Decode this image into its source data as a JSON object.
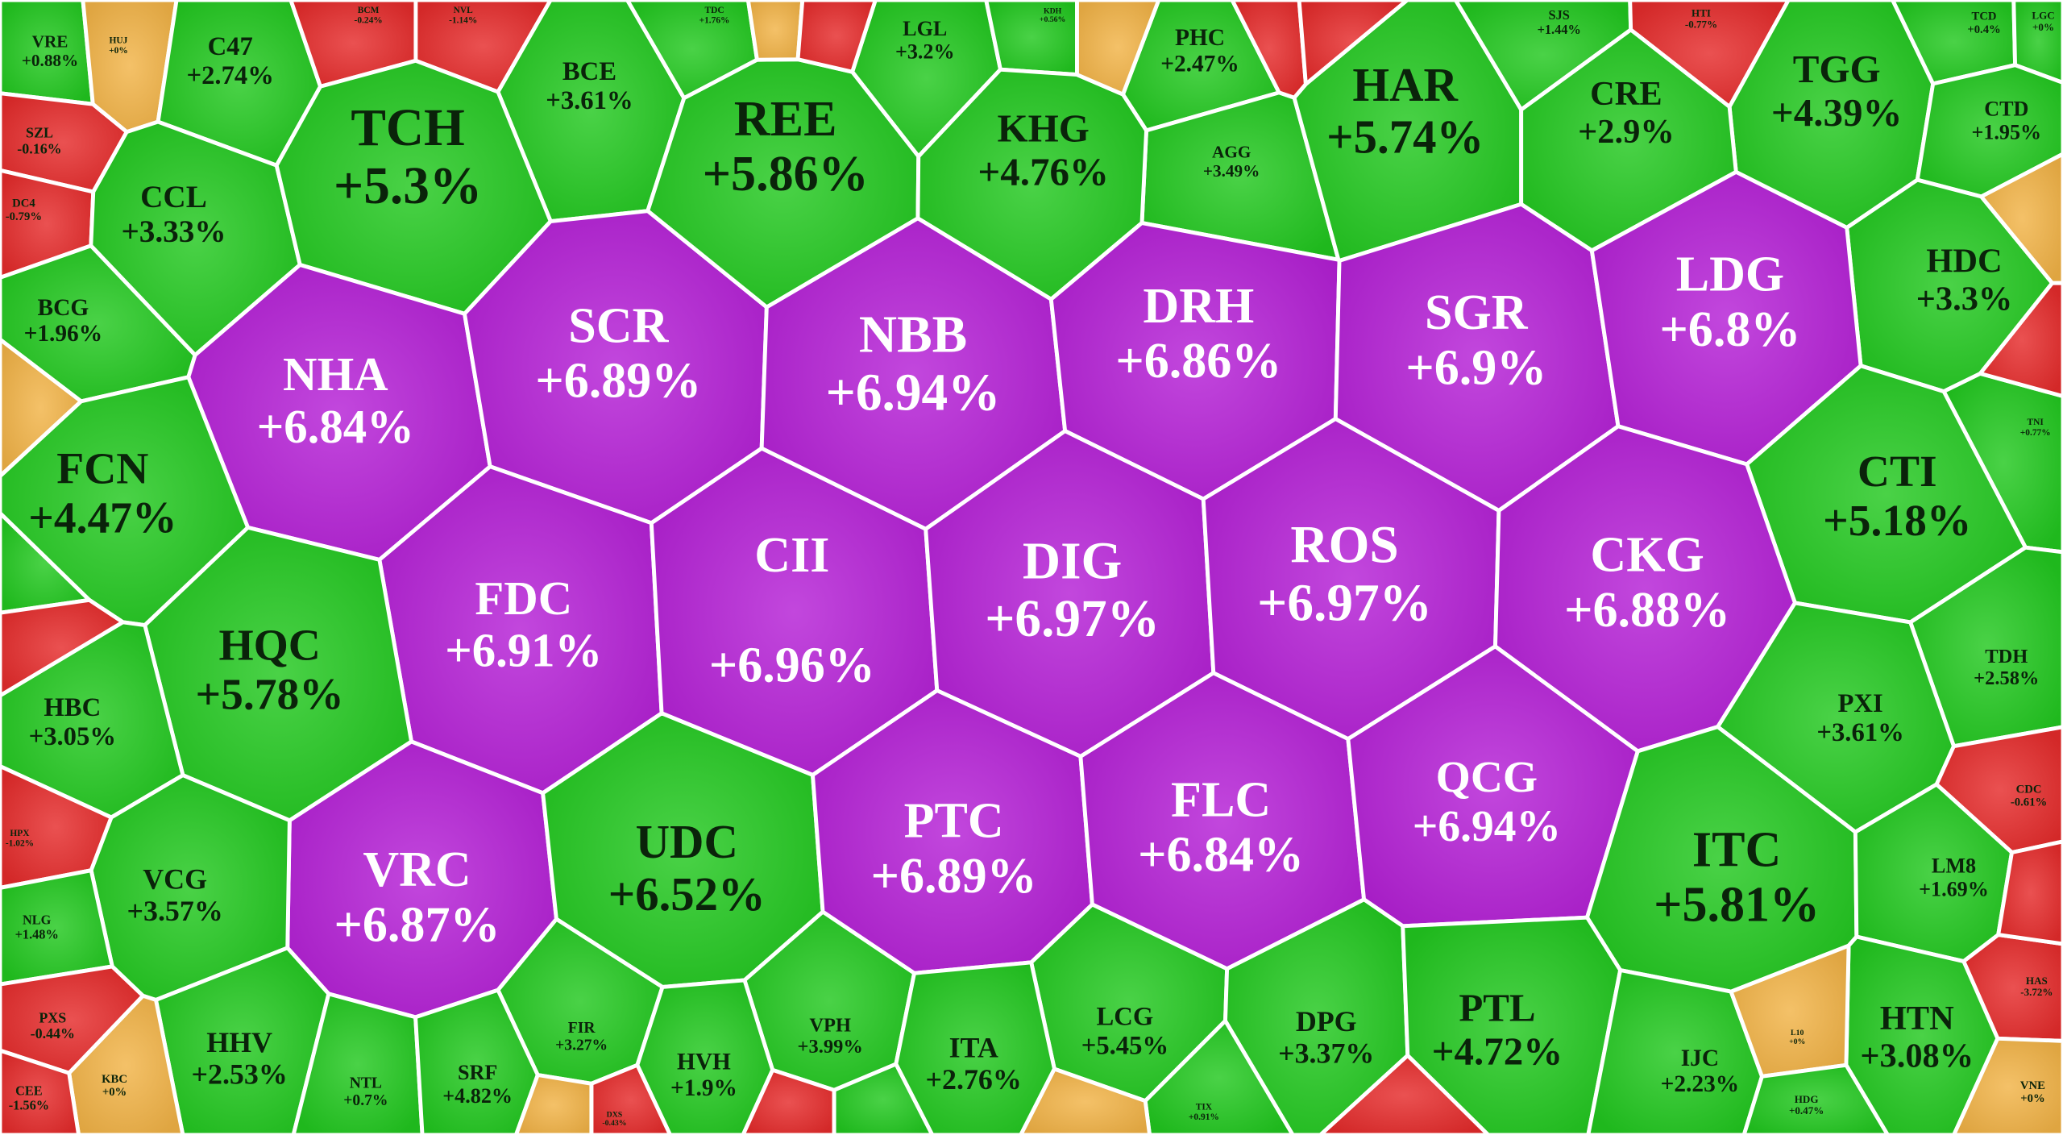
{
  "cells": [
    {
      "ticker": "VRE",
      "change": "+0.88%",
      "color": "#22c81f"
    },
    {
      "ticker": "HUJ",
      "change": "+0%",
      "color": "#f2b347"
    },
    {
      "ticker": "C47",
      "change": "+2.74%",
      "color": "#22c81f"
    },
    {
      "ticker": "BCM",
      "change": "-0.24%",
      "color": "#e52b2b"
    },
    {
      "ticker": "NVL",
      "change": "-1.14%",
      "color": "#e52b2b"
    },
    {
      "ticker": "BCE",
      "change": "+3.61%",
      "color": "#22c81f"
    },
    {
      "ticker": "TDC",
      "change": "+1.76%",
      "color": "#22c81f"
    },
    {
      "ticker": "LGL",
      "change": "+3.2%",
      "color": "#22c81f"
    },
    {
      "ticker": "KDH",
      "change": "+0.56%",
      "color": "#22c81f"
    },
    {
      "ticker": "PHC",
      "change": "+2.47%",
      "color": "#22c81f"
    },
    {
      "ticker": "AGG",
      "change": "+3.49%",
      "color": "#22c81f"
    },
    {
      "ticker": "HAR",
      "change": "+5.74%",
      "color": "#22c81f"
    },
    {
      "ticker": "SJS",
      "change": "+1.44%",
      "color": "#22c81f"
    },
    {
      "ticker": "HTI",
      "change": "-0.77%",
      "color": "#e52b2b"
    },
    {
      "ticker": "TGG",
      "change": "+4.39%",
      "color": "#22c81f"
    },
    {
      "ticker": "TCD",
      "change": "+0.4%",
      "color": "#22c81f"
    },
    {
      "ticker": "LGC",
      "change": "+0%",
      "color": "#22c81f"
    },
    {
      "ticker": "CTD",
      "change": "+1.95%",
      "color": "#22c81f"
    },
    {
      "ticker": "SZL",
      "change": "-0.16%",
      "color": "#e52b2b"
    },
    {
      "ticker": "DC4",
      "change": "-0.79%",
      "color": "#e52b2b"
    },
    {
      "ticker": "CCL",
      "change": "+3.33%",
      "color": "#22c81f"
    },
    {
      "ticker": "TCH",
      "change": "+5.3%",
      "color": "#22c81f"
    },
    {
      "ticker": "REE",
      "change": "+5.86%",
      "color": "#22c81f"
    },
    {
      "ticker": "KHG",
      "change": "+4.76%",
      "color": "#22c81f"
    },
    {
      "ticker": "CRE",
      "change": "+2.9%",
      "color": "#22c81f"
    },
    {
      "ticker": "BCG",
      "change": "+1.96%",
      "color": "#22c81f"
    },
    {
      "ticker": "HDC",
      "change": "+3.3%",
      "color": "#22c81f"
    },
    {
      "ticker": "NHA",
      "change": "+6.84%",
      "color": "#b41fd6"
    },
    {
      "ticker": "SCR",
      "change": "+6.89%",
      "color": "#b41fd6"
    },
    {
      "ticker": "NBB",
      "change": "+6.94%",
      "color": "#b41fd6"
    },
    {
      "ticker": "DRH",
      "change": "+6.86%",
      "color": "#b41fd6"
    },
    {
      "ticker": "SGR",
      "change": "+6.9%",
      "color": "#b41fd6"
    },
    {
      "ticker": "LDG",
      "change": "+6.8%",
      "color": "#b41fd6"
    },
    {
      "ticker": "TNI",
      "change": "+0.77%",
      "color": "#22c81f"
    },
    {
      "ticker": "FCN",
      "change": "+4.47%",
      "color": "#22c81f"
    },
    {
      "ticker": "CTI",
      "change": "+5.18%",
      "color": "#22c81f"
    },
    {
      "ticker": "FDC",
      "change": "+6.91%",
      "color": "#b41fd6"
    },
    {
      "ticker": "CII",
      "change": "+6.96%",
      "color": "#b41fd6"
    },
    {
      "ticker": "DIG",
      "change": "+6.97%",
      "color": "#b41fd6"
    },
    {
      "ticker": "ROS",
      "change": "+6.97%",
      "color": "#b41fd6"
    },
    {
      "ticker": "CKG",
      "change": "+6.88%",
      "color": "#b41fd6"
    },
    {
      "ticker": "HQC",
      "change": "+5.78%",
      "color": "#22c81f"
    },
    {
      "ticker": "HBC",
      "change": "+3.05%",
      "color": "#22c81f"
    },
    {
      "ticker": "TDH",
      "change": "+2.58%",
      "color": "#22c81f"
    },
    {
      "ticker": "PXI",
      "change": "+3.61%",
      "color": "#22c81f"
    },
    {
      "ticker": "CDC",
      "change": "-0.61%",
      "color": "#e52b2b"
    },
    {
      "ticker": "HPX",
      "change": "-1.02%",
      "color": "#e52b2b"
    },
    {
      "ticker": "VRC",
      "change": "+6.87%",
      "color": "#b41fd6"
    },
    {
      "ticker": "UDC",
      "change": "+6.52%",
      "color": "#22c81f"
    },
    {
      "ticker": "PTC",
      "change": "+6.89%",
      "color": "#b41fd6"
    },
    {
      "ticker": "FLC",
      "change": "+6.84%",
      "color": "#b41fd6"
    },
    {
      "ticker": "QCG",
      "change": "+6.94%",
      "color": "#b41fd6"
    },
    {
      "ticker": "ITC",
      "change": "+5.81%",
      "color": "#22c81f"
    },
    {
      "ticker": "LM8",
      "change": "+1.69%",
      "color": "#22c81f"
    },
    {
      "ticker": "VCG",
      "change": "+3.57%",
      "color": "#22c81f"
    },
    {
      "ticker": "NLG",
      "change": "+1.48%",
      "color": "#22c81f"
    },
    {
      "ticker": "HAS",
      "change": "-3.72%",
      "color": "#e52b2b"
    },
    {
      "ticker": "PXS",
      "change": "-0.44%",
      "color": "#e52b2b"
    },
    {
      "ticker": "HHV",
      "change": "+2.53%",
      "color": "#22c81f"
    },
    {
      "ticker": "FIR",
      "change": "+3.27%",
      "color": "#22c81f"
    },
    {
      "ticker": "VPH",
      "change": "+3.99%",
      "color": "#22c81f"
    },
    {
      "ticker": "LCG",
      "change": "+5.45%",
      "color": "#22c81f"
    },
    {
      "ticker": "DPG",
      "change": "+3.37%",
      "color": "#22c81f"
    },
    {
      "ticker": "PTL",
      "change": "+4.72%",
      "color": "#22c81f"
    },
    {
      "ticker": "HTN",
      "change": "+3.08%",
      "color": "#22c81f"
    },
    {
      "ticker": "KBC",
      "change": "+0%",
      "color": "#f2b347"
    },
    {
      "ticker": "CEE",
      "change": "-1.56%",
      "color": "#e52b2b"
    },
    {
      "ticker": "NTL",
      "change": "+0.7%",
      "color": "#22c81f"
    },
    {
      "ticker": "SRF",
      "change": "+4.82%",
      "color": "#22c81f"
    },
    {
      "ticker": "HVH",
      "change": "+1.9%",
      "color": "#22c81f"
    },
    {
      "ticker": "ITA",
      "change": "+2.76%",
      "color": "#22c81f"
    },
    {
      "ticker": "IJC",
      "change": "+2.23%",
      "color": "#22c81f"
    },
    {
      "ticker": "L10",
      "change": "+0%",
      "color": "#f2b347"
    },
    {
      "ticker": "HDG",
      "change": "+0.47%",
      "color": "#22c81f"
    },
    {
      "ticker": "VNE",
      "change": "+0%",
      "color": "#f2b347"
    },
    {
      "ticker": "TIX",
      "change": "+0.91%",
      "color": "#22c81f"
    },
    {
      "ticker": "DXS",
      "change": "-0.43%",
      "color": "#e52b2b"
    }
  ]
}
